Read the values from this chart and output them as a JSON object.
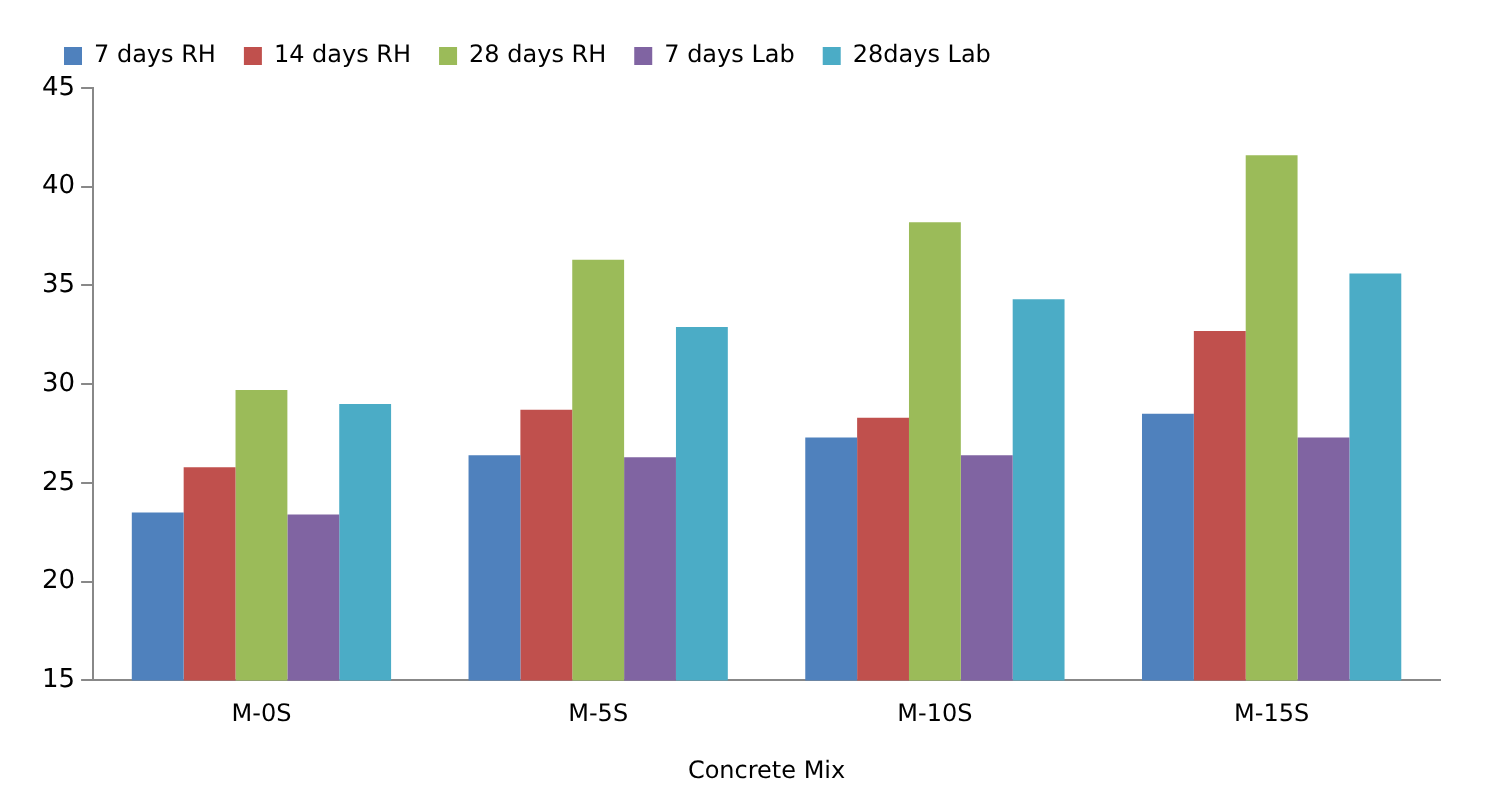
{
  "chart_data": {
    "type": "bar",
    "xlabel": "Concrete Mix",
    "categories": [
      "M-0S",
      "M-5S",
      "M-10S",
      "M-15S"
    ],
    "series": [
      {
        "name": "7 days RH",
        "color": "#4f81bd",
        "values": [
          23.5,
          26.4,
          27.3,
          28.5
        ]
      },
      {
        "name": "14 days RH",
        "color": "#c0504d",
        "values": [
          25.8,
          28.7,
          28.3,
          32.7
        ]
      },
      {
        "name": "28 days RH",
        "color": "#9bbb59",
        "values": [
          29.7,
          36.3,
          38.2,
          41.6
        ]
      },
      {
        "name": "7 days Lab",
        "color": "#8064a2",
        "values": [
          23.4,
          26.3,
          26.4,
          27.3
        ]
      },
      {
        "name": "28days Lab",
        "color": "#4bacc6",
        "values": [
          29.0,
          32.9,
          34.3,
          35.6
        ]
      }
    ],
    "ylim": [
      15,
      45
    ],
    "yticks": [
      15,
      20,
      25,
      30,
      35,
      40,
      45
    ],
    "grid": false,
    "legend": "top left"
  }
}
